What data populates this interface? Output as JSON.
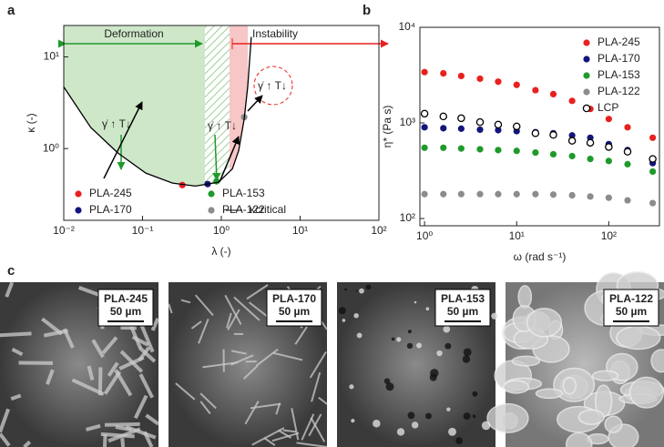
{
  "panel_labels": [
    "a",
    "b",
    "c"
  ],
  "chart_data": [
    {
      "type": "scatter",
      "xscale": "log",
      "yscale": "log",
      "xlabel": "λ (-)",
      "ylabel": "κ (-)",
      "xlim": [
        0.01,
        100
      ],
      "xticks": [
        {
          "value": 0.01,
          "label": "10⁻²"
        },
        {
          "value": 0.1,
          "label": "10⁻¹"
        },
        {
          "value": 1,
          "label": "10⁰"
        },
        {
          "value": 10,
          "label": "10¹"
        },
        {
          "value": 100,
          "label": "10²"
        }
      ],
      "ylim": [
        0.165,
        22
      ],
      "yticks": [
        {
          "value": 1,
          "label": "10⁰"
        },
        {
          "value": 10,
          "label": "10¹"
        }
      ],
      "legend": "lower left",
      "annotations": [
        "Deformation",
        "Instability",
        "γ̇ ↑ T↓",
        "γ̇ ↑ T↓",
        "γ̇ ↑ T↓"
      ],
      "series": [
        {
          "name": "PLA-245",
          "color": "#e8211f",
          "x": [
            0.32
          ],
          "values": [
            0.4
          ]
        },
        {
          "name": "PLA-153",
          "color": "#1f9a2a",
          "x": [
            0.87
          ],
          "values": [
            0.44
          ]
        },
        {
          "name": "PLA-170",
          "color": "#13157c",
          "x": [
            0.67
          ],
          "values": [
            0.41
          ]
        },
        {
          "name": "PLA-122",
          "color": "#8c8c8c",
          "x": [
            1.95
          ],
          "values": [
            2.2
          ]
        },
        {
          "name": "κcritical",
          "color": "#000000",
          "kind": "line",
          "x": [
            0.01,
            0.022,
            0.049,
            0.11,
            0.24,
            0.47,
            0.92,
            1.38,
            1.66,
            1.95,
            2.16,
            2.4
          ],
          "values": [
            4.7,
            1.7,
            0.89,
            0.54,
            0.42,
            0.39,
            0.43,
            0.6,
            0.95,
            2.1,
            4.7,
            16.5
          ]
        }
      ]
    },
    {
      "type": "scatter",
      "xscale": "log",
      "yscale": "log",
      "xlabel": "ω (rad s⁻¹)",
      "ylabel": "η* (Pa s)",
      "xlim": [
        0.89,
        355
      ],
      "xticks": [
        {
          "value": 1,
          "label": "10⁰"
        },
        {
          "value": 10,
          "label": "10¹"
        },
        {
          "value": 100,
          "label": "10²"
        }
      ],
      "ylim": [
        84,
        10000
      ],
      "yticks": [
        {
          "value": 100,
          "label": "10²"
        },
        {
          "value": 1000,
          "label": "10³"
        },
        {
          "value": 10000,
          "label": "10⁴"
        }
      ],
      "legend": "upper right",
      "x": [
        1,
        1.6,
        2.5,
        4,
        6.3,
        10,
        16,
        25,
        40,
        63,
        100,
        160,
        300
      ],
      "series": [
        {
          "name": "PLA-245",
          "color": "#e8211f",
          "values": [
            3400,
            3300,
            3100,
            2900,
            2700,
            2500,
            2200,
            2000,
            1700,
            1400,
            1100,
            900,
            700
          ]
        },
        {
          "name": "PLA-170",
          "color": "#13157c",
          "values": [
            900,
            880,
            870,
            850,
            840,
            820,
            800,
            780,
            740,
            700,
            600,
            520,
            380
          ]
        },
        {
          "name": "PLA-153",
          "color": "#1f9a2a",
          "values": [
            550,
            550,
            540,
            530,
            520,
            510,
            490,
            470,
            450,
            420,
            400,
            370,
            310
          ]
        },
        {
          "name": "PLA-122",
          "color": "#8c8c8c",
          "values": [
            180,
            180,
            180,
            180,
            180,
            180,
            180,
            178,
            175,
            170,
            165,
            155,
            145
          ]
        },
        {
          "name": "LCP",
          "color": "#000000",
          "marker": "open",
          "values": [
            1250,
            1170,
            1120,
            1020,
            960,
            920,
            780,
            750,
            650,
            620,
            560,
            500,
            420
          ]
        }
      ]
    }
  ],
  "images": [
    {
      "label": "PLA-245",
      "scale": "50 µm"
    },
    {
      "label": "PLA-170",
      "scale": "50 µm"
    },
    {
      "label": "PLA-153",
      "scale": "50 µm"
    },
    {
      "label": "PLA-122",
      "scale": "50 µm"
    }
  ]
}
